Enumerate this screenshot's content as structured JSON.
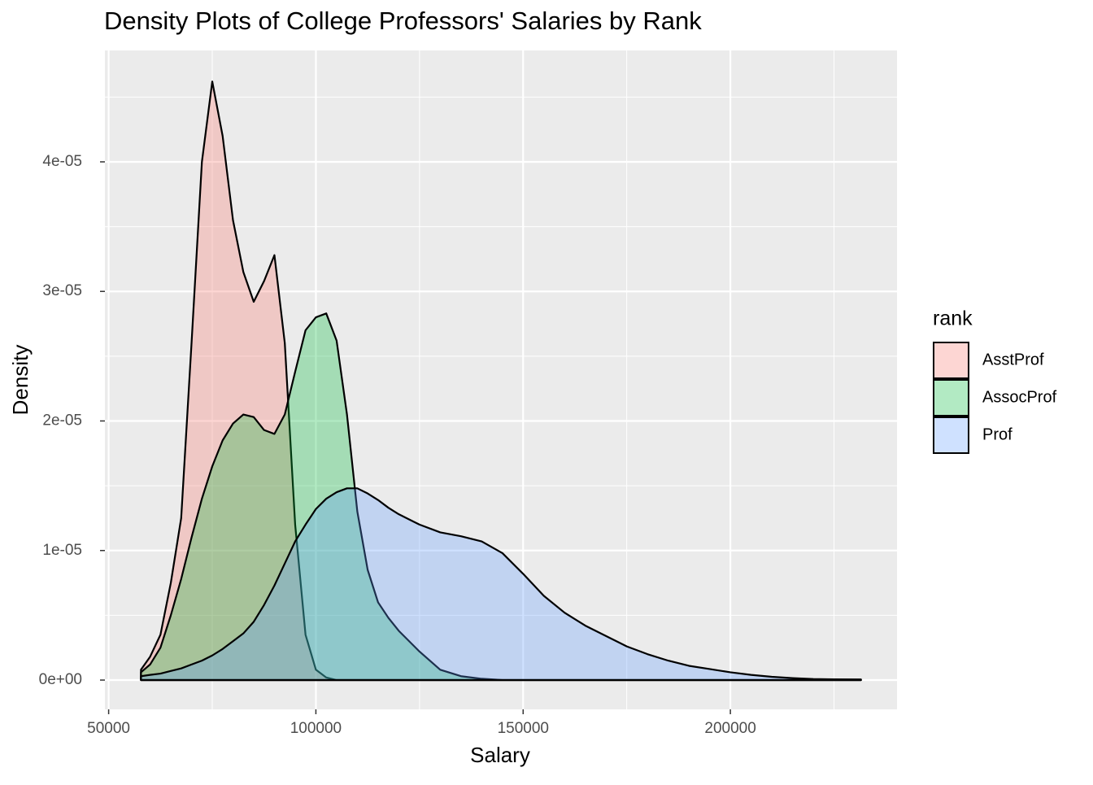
{
  "chart_data": {
    "type": "density",
    "title": "Density Plots of College Professors' Salaries by Rank",
    "x_label": "Salary",
    "y_label": "Density",
    "legend_title": "rank",
    "legend_position": "right",
    "grid": true,
    "alpha": 0.3,
    "x": [
      57800,
      60000,
      62500,
      65000,
      67500,
      70000,
      72500,
      75000,
      77500,
      80000,
      82500,
      85000,
      87500,
      90000,
      92500,
      95000,
      97500,
      100000,
      102500,
      105000,
      107500,
      110000,
      112500,
      115000,
      117500,
      120000,
      125000,
      130000,
      135000,
      140000,
      145000,
      150000,
      155000,
      160000,
      165000,
      170000,
      175000,
      180000,
      185000,
      190000,
      195000,
      200000,
      205000,
      210000,
      215000,
      220000,
      225000,
      231500
    ],
    "series": [
      {
        "name": "AsstProf",
        "color": "#F8766D",
        "values": [
          8e-07,
          1.8e-06,
          3.5e-06,
          7.5e-06,
          1.25e-05,
          2.6e-05,
          4e-05,
          4.62e-05,
          4.2e-05,
          3.55e-05,
          3.15e-05,
          2.92e-05,
          3.08e-05,
          3.28e-05,
          2.6e-05,
          1.2e-05,
          3.5e-06,
          8e-07,
          2e-07,
          0,
          0,
          0,
          0,
          0,
          0,
          0,
          0,
          0,
          0,
          0,
          0,
          0,
          0,
          0,
          0,
          0,
          0,
          0,
          0,
          0,
          0,
          0,
          0,
          0,
          0,
          0,
          0,
          0
        ]
      },
      {
        "name": "AssocProf",
        "color": "#00BA38",
        "values": [
          6e-07,
          1.2e-06,
          2.5e-06,
          5e-06,
          7.8e-06,
          1.1e-05,
          1.4e-05,
          1.65e-05,
          1.85e-05,
          1.98e-05,
          2.05e-05,
          2.03e-05,
          1.93e-05,
          1.9e-05,
          2.05e-05,
          2.38e-05,
          2.7e-05,
          2.8e-05,
          2.83e-05,
          2.62e-05,
          2.05e-05,
          1.3e-05,
          8.5e-06,
          6e-06,
          4.8e-06,
          3.8e-06,
          2.2e-06,
          8e-07,
          3e-07,
          1e-07,
          0,
          0,
          0,
          0,
          0,
          0,
          0,
          0,
          0,
          0,
          0,
          0,
          0,
          0,
          0,
          0,
          0,
          0
        ]
      },
      {
        "name": "Prof",
        "color": "#619CFF",
        "values": [
          3e-07,
          4e-07,
          5e-07,
          7e-07,
          9e-07,
          1.2e-06,
          1.5e-06,
          1.9e-06,
          2.4e-06,
          3e-06,
          3.6e-06,
          4.5e-06,
          5.8e-06,
          7.3e-06,
          9e-06,
          1.07e-05,
          1.2e-05,
          1.32e-05,
          1.4e-05,
          1.45e-05,
          1.48e-05,
          1.48e-05,
          1.44e-05,
          1.39e-05,
          1.33e-05,
          1.28e-05,
          1.2e-05,
          1.14e-05,
          1.11e-05,
          1.07e-05,
          9.8e-06,
          8.2e-06,
          6.5e-06,
          5.2e-06,
          4.2e-06,
          3.4e-06,
          2.6e-06,
          2e-06,
          1.5e-06,
          1.1e-06,
          8.5e-07,
          6e-07,
          4e-07,
          2.5e-07,
          1.5e-07,
          8e-08,
          6e-08,
          5e-08
        ]
      }
    ],
    "xlim": [
      49100,
      240200
    ],
    "xticks": [
      50000,
      100000,
      150000,
      200000
    ],
    "ylim": [
      -2.26e-06,
      4.86e-05
    ],
    "yticks": [
      {
        "value": 0,
        "label": "0e+00"
      },
      {
        "value": 1e-05,
        "label": "1e-05"
      },
      {
        "value": 2e-05,
        "label": "2e-05"
      },
      {
        "value": 3e-05,
        "label": "3e-05"
      },
      {
        "value": 4e-05,
        "label": "4e-05"
      }
    ]
  }
}
